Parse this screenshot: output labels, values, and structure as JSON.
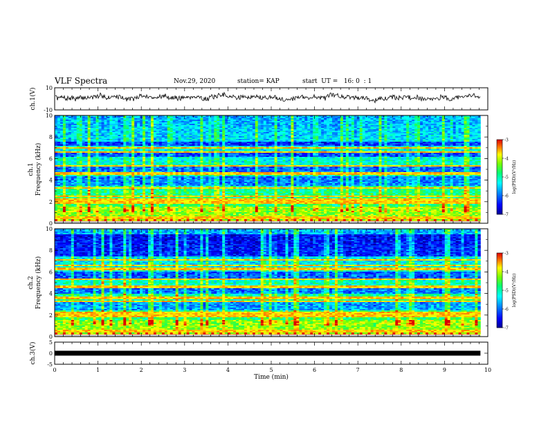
{
  "header": {
    "title": "VLF Spectra",
    "date": "Nov.29, 2020",
    "station": "station= KAP",
    "start": "start  UT =   16: 0  : 1"
  },
  "chart_data": [
    {
      "type": "line",
      "panel": "ch1-waveform",
      "ylabel": "ch.1(V)",
      "ylim": [
        -10,
        10
      ],
      "yticks": [
        "10",
        "-10"
      ],
      "xlim": [
        0,
        10
      ],
      "x_end_data": 9.83,
      "series": [
        {
          "color": "#000000",
          "mean": 1.5,
          "amplitude": 4
        }
      ]
    },
    {
      "type": "heatmap",
      "panel": "ch1-spectrogram",
      "ylabel_top": "ch.1",
      "ylabel": "Frequency (kHz)",
      "ylim": [
        0,
        10
      ],
      "yticks": [
        "0",
        "2",
        "4",
        "6",
        "8",
        "10"
      ],
      "xlim": [
        0,
        10
      ],
      "x_end_data": 9.83,
      "colorbar": {
        "label": "log(PSD)(V²/Hz)",
        "range": [
          -7,
          -3
        ],
        "ticks": [
          "-3",
          "-4",
          "-5",
          "-6",
          "-7"
        ]
      },
      "features": {
        "strong_bands_khz": [
          0.2,
          0.5,
          1.9,
          2.2,
          2.5,
          3.3,
          4.6,
          5.3,
          6.6,
          7.0
        ],
        "quiet_bands_khz": [
          [
            3.5,
            4.3
          ],
          [
            4.7,
            5.2
          ],
          [
            6.2,
            6.6
          ],
          [
            7.2,
            7.6
          ]
        ],
        "impulsive_activity": "high"
      }
    },
    {
      "type": "heatmap",
      "panel": "ch2-spectrogram",
      "ylabel_top": "ch.2",
      "ylabel": "Frequency (kHz)",
      "ylim": [
        0,
        10
      ],
      "yticks": [
        "0",
        "2",
        "4",
        "6",
        "8",
        "10"
      ],
      "xlim": [
        0,
        10
      ],
      "x_end_data": 9.83,
      "colorbar": {
        "label": "log(PSD)(V²/Hz)",
        "range": [
          -7,
          -3
        ],
        "ticks": [
          "-3",
          "-4",
          "-5",
          "-6",
          "-7"
        ]
      },
      "features": {
        "strong_bands_khz": [
          0.2,
          0.5,
          1.9,
          2.2,
          3.3,
          3.6,
          4.6,
          5.3,
          6.3,
          6.6,
          7.1
        ],
        "quiet_bands_khz": [
          [
            2.4,
            3.2
          ],
          [
            4.0,
            4.5
          ],
          [
            5.4,
            6.0
          ],
          [
            7.4,
            9.5
          ]
        ],
        "impulsive_activity": "high"
      }
    },
    {
      "type": "line",
      "panel": "ch3-waveform",
      "ylabel": "ch.3(V)",
      "ylim": [
        -5,
        5
      ],
      "yticks": [
        "5",
        "0",
        "-5"
      ],
      "xlim": [
        0,
        10
      ],
      "xlabel": "Time (min)",
      "xticks": [
        "0",
        "1",
        "2",
        "3",
        "4",
        "5",
        "6",
        "7",
        "8",
        "9",
        "10"
      ],
      "x_end_data": 9.83,
      "series": [
        {
          "color": "#000000",
          "value": 0,
          "band": [
            -0.5,
            0.5
          ]
        }
      ]
    }
  ]
}
